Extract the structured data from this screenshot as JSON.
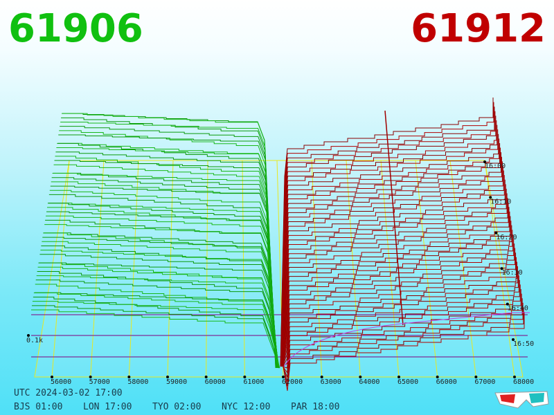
{
  "header": {
    "bid": "61906",
    "ask": "61912"
  },
  "axis": {
    "price_labels": [
      "56000",
      "57000",
      "58000",
      "59000",
      "60000",
      "61000",
      "62000",
      "63000",
      "64000",
      "65000",
      "66000",
      "67000",
      "68000"
    ],
    "time_labels": [
      "16:00",
      "16:10",
      "16:20",
      "16:30",
      "16:40",
      "16:50"
    ],
    "depth_label": "0.1k"
  },
  "footer": {
    "utc": "UTC 2024-03-02 17:00",
    "cities": [
      "BJS 01:00",
      "LON 17:00",
      "TYO 02:00",
      "NYC 12:00",
      "PAR 18:00"
    ]
  }
}
